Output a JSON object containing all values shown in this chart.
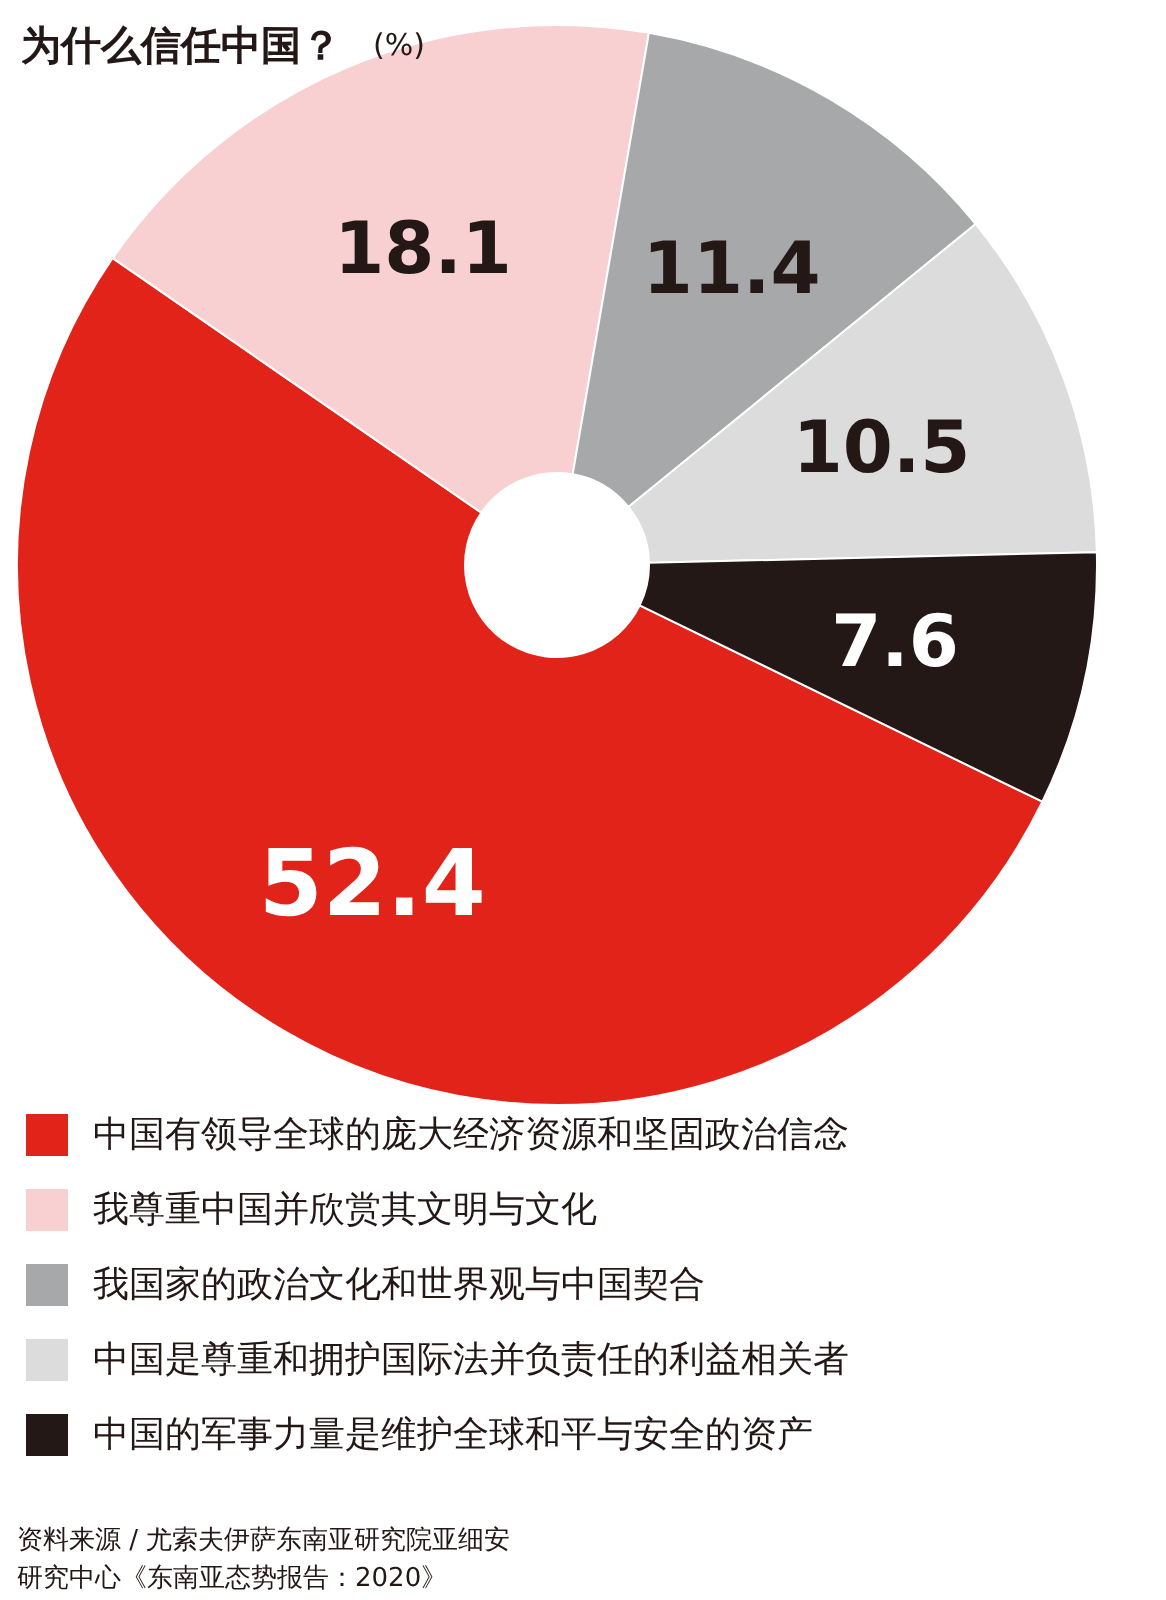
{
  "chart_data": {
    "type": "donut",
    "title": "为什么信任中国？",
    "subtitle": "(%)",
    "categories": [
      "中国有领导全球的庞大经济资源和坚固政治信念",
      "我尊重中国并欣赏其文明与文化",
      "我国家的政治文化和世界观与中国契合",
      "中国是尊重和拥护国际法并负责任的利益相关者",
      "中国的军事力量是维护全球和平与安全的资产"
    ],
    "values": [
      52.4,
      18.1,
      11.4,
      10.5,
      7.6
    ],
    "colors": [
      "#e2231a",
      "#f9d0d2",
      "#a7a8aa",
      "#dcdcdd",
      "#231815"
    ],
    "data_labels": true,
    "legend": "bottom",
    "annotations": [
      "资料来源 / 尤索夫伊萨东南亚研究院亚细安研究中心《东南亚态势报告：2020》"
    ]
  }
}
